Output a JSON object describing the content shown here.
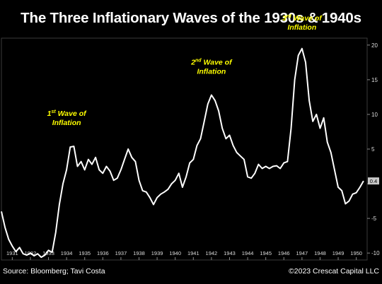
{
  "title": "The Three Inflationary Waves of the 1930s & 1940s",
  "source": "Source: Bloomberg; Tavi Costa",
  "copyright": "©2023 Crescat Capital LLC",
  "colors": {
    "background": "#000000",
    "line": "#ffffff",
    "annotation": "#ffff00",
    "last_value_box": "#c8c8c8"
  },
  "chart_data": {
    "type": "line",
    "title": "The Three Inflationary Waves of the 1930s & 1940s",
    "xlabel": "",
    "ylabel": "",
    "x_tick_labels": [
      "1931",
      "1932",
      "1933",
      "1934",
      "1935",
      "1936",
      "1937",
      "1938",
      "1939",
      "1940",
      "1941",
      "1942",
      "1943",
      "1944",
      "1945",
      "1946",
      "1947",
      "1948",
      "1949",
      "1950"
    ],
    "y_ticks": [
      -10,
      -5,
      0,
      5,
      10,
      15,
      20
    ],
    "y_tick_labels": [
      "-10",
      "-5",
      "",
      "5",
      "10",
      "15",
      "20"
    ],
    "ylim": [
      -11,
      21
    ],
    "xlim": [
      1930.4,
      1950.6
    ],
    "last_value": 0.4,
    "last_value_label": "0.4",
    "grid": false,
    "annotations": [
      {
        "line1": "1st Wave of",
        "line1_sup_base": "1",
        "line1_sup": "st",
        "line1_rest": " Wave of",
        "line2": "Inflation",
        "x": 1934,
        "y": 5.9
      },
      {
        "line1": "2nd Wave of",
        "line1_sup_base": "2",
        "line1_sup": "nd",
        "line1_rest": " Wave of",
        "line2": "Inflation",
        "x": 1942,
        "y": 13.3
      },
      {
        "line1": "3rd Wave of",
        "line1_sup_base": "3",
        "line1_sup": "rd",
        "line1_rest": " Wave of",
        "line2": "Inflation",
        "x": 1947,
        "y": 19.7
      }
    ],
    "series": [
      {
        "points": [
          [
            1930.4,
            -4.0
          ],
          [
            1930.6,
            -6.3
          ],
          [
            1930.8,
            -8.0
          ],
          [
            1931.0,
            -9.0
          ],
          [
            1931.2,
            -9.8
          ],
          [
            1931.4,
            -9.2
          ],
          [
            1931.6,
            -10.1
          ],
          [
            1931.8,
            -10.3
          ],
          [
            1932.0,
            -10.0
          ],
          [
            1932.2,
            -10.4
          ],
          [
            1932.4,
            -10.1
          ],
          [
            1932.6,
            -10.6
          ],
          [
            1932.8,
            -10.3
          ],
          [
            1933.0,
            -9.6
          ],
          [
            1933.2,
            -9.9
          ],
          [
            1933.4,
            -7.0
          ],
          [
            1933.6,
            -3.0
          ],
          [
            1933.8,
            0.0
          ],
          [
            1934.0,
            2.0
          ],
          [
            1934.2,
            5.3
          ],
          [
            1934.4,
            5.4
          ],
          [
            1934.6,
            2.5
          ],
          [
            1934.8,
            3.2
          ],
          [
            1935.0,
            2.0
          ],
          [
            1935.2,
            3.5
          ],
          [
            1935.4,
            2.8
          ],
          [
            1935.6,
            3.8
          ],
          [
            1935.8,
            2.0
          ],
          [
            1936.0,
            1.5
          ],
          [
            1936.2,
            2.5
          ],
          [
            1936.4,
            1.8
          ],
          [
            1936.6,
            0.5
          ],
          [
            1936.8,
            0.8
          ],
          [
            1937.0,
            2.0
          ],
          [
            1937.2,
            3.5
          ],
          [
            1937.4,
            5.0
          ],
          [
            1937.6,
            3.8
          ],
          [
            1937.8,
            3.2
          ],
          [
            1938.0,
            0.5
          ],
          [
            1938.2,
            -1.0
          ],
          [
            1938.4,
            -1.2
          ],
          [
            1938.6,
            -2.0
          ],
          [
            1938.8,
            -3.0
          ],
          [
            1939.0,
            -2.0
          ],
          [
            1939.2,
            -1.5
          ],
          [
            1939.4,
            -1.2
          ],
          [
            1939.6,
            -0.8
          ],
          [
            1939.8,
            0.0
          ],
          [
            1940.0,
            0.5
          ],
          [
            1940.2,
            1.5
          ],
          [
            1940.4,
            -0.5
          ],
          [
            1940.6,
            1.0
          ],
          [
            1940.8,
            3.0
          ],
          [
            1941.0,
            3.5
          ],
          [
            1941.2,
            5.5
          ],
          [
            1941.4,
            6.5
          ],
          [
            1941.6,
            9.0
          ],
          [
            1941.8,
            11.5
          ],
          [
            1942.0,
            12.8
          ],
          [
            1942.2,
            12.0
          ],
          [
            1942.4,
            10.5
          ],
          [
            1942.6,
            8.0
          ],
          [
            1942.8,
            6.5
          ],
          [
            1943.0,
            7.0
          ],
          [
            1943.2,
            5.5
          ],
          [
            1943.4,
            4.5
          ],
          [
            1943.6,
            4.0
          ],
          [
            1943.8,
            3.5
          ],
          [
            1944.0,
            1.0
          ],
          [
            1944.2,
            0.8
          ],
          [
            1944.4,
            1.5
          ],
          [
            1944.6,
            2.8
          ],
          [
            1944.8,
            2.2
          ],
          [
            1945.0,
            2.5
          ],
          [
            1945.2,
            2.2
          ],
          [
            1945.4,
            2.5
          ],
          [
            1945.6,
            2.6
          ],
          [
            1945.8,
            2.2
          ],
          [
            1946.0,
            3.0
          ],
          [
            1946.2,
            3.2
          ],
          [
            1946.4,
            8.0
          ],
          [
            1946.6,
            15.0
          ],
          [
            1946.8,
            18.5
          ],
          [
            1947.0,
            19.5
          ],
          [
            1947.2,
            17.5
          ],
          [
            1947.4,
            12.0
          ],
          [
            1947.6,
            9.0
          ],
          [
            1947.8,
            10.0
          ],
          [
            1948.0,
            8.0
          ],
          [
            1948.2,
            9.5
          ],
          [
            1948.4,
            6.0
          ],
          [
            1948.6,
            4.5
          ],
          [
            1948.8,
            2.0
          ],
          [
            1949.0,
            -0.5
          ],
          [
            1949.2,
            -1.0
          ],
          [
            1949.4,
            -2.9
          ],
          [
            1949.6,
            -2.5
          ],
          [
            1949.8,
            -1.5
          ],
          [
            1950.0,
            -1.3
          ],
          [
            1950.2,
            -0.5
          ],
          [
            1950.4,
            0.4
          ]
        ]
      }
    ]
  }
}
